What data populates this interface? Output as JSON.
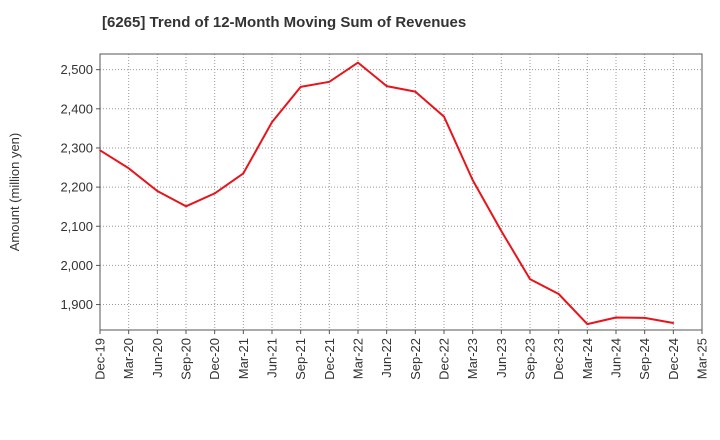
{
  "chart_data": {
    "type": "line",
    "title": "[6265]  Trend of 12-Month Moving Sum of Revenues",
    "xlabel": "",
    "ylabel": "Amount (million yen)",
    "ylim": [
      1835,
      2540
    ],
    "yticks": [
      1900,
      2000,
      2100,
      2200,
      2300,
      2400,
      2500
    ],
    "ytick_labels": [
      "1,900",
      "2,000",
      "2,100",
      "2,200",
      "2,300",
      "2,400",
      "2,500"
    ],
    "categories": [
      "Dec-19",
      "Mar-20",
      "Jun-20",
      "Sep-20",
      "Dec-20",
      "Mar-21",
      "Jun-21",
      "Sep-21",
      "Dec-21",
      "Mar-22",
      "Jun-22",
      "Sep-22",
      "Dec-22",
      "Mar-23",
      "Jun-23",
      "Sep-23",
      "Dec-23",
      "Mar-24",
      "Jun-24",
      "Sep-24",
      "Dec-24",
      "Mar-25"
    ],
    "series": [
      {
        "values": [
          2294,
          2248,
          2190,
          2151,
          2184,
          2235,
          2366,
          2456,
          2469,
          2518,
          2458,
          2444,
          2380,
          2218,
          2088,
          1965,
          1927,
          1850,
          1867,
          1866,
          1853,
          null
        ]
      }
    ],
    "grid": true,
    "line_color": "#e8141b"
  }
}
